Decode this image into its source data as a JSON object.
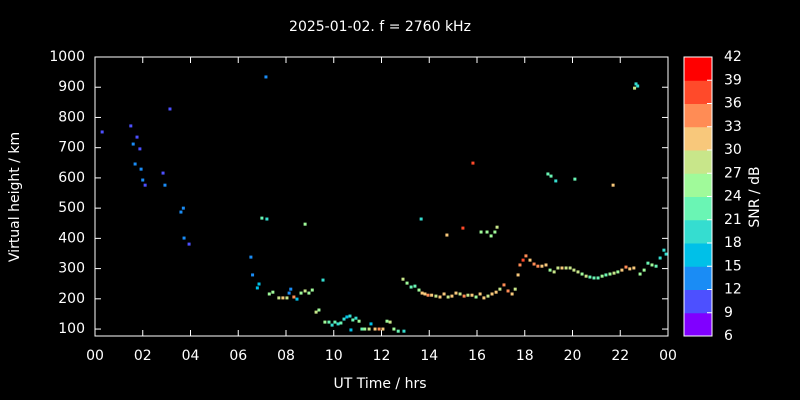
{
  "chart_data": {
    "type": "scatter",
    "title": "2025-01-02. f = 2760 kHz",
    "xlabel": "UT Time / hrs",
    "ylabel": "Virtual height / km",
    "colorbar_label": "SNR / dB",
    "xlim": [
      0,
      24
    ],
    "xticks": [
      {
        "value": 0,
        "label": "00"
      },
      {
        "value": 2,
        "label": "02"
      },
      {
        "value": 4,
        "label": "04"
      },
      {
        "value": 6,
        "label": "06"
      },
      {
        "value": 8,
        "label": "08"
      },
      10,
      12,
      14,
      16,
      18,
      20,
      22,
      {
        "value": 24,
        "label": "00"
      }
    ],
    "ylim": [
      77,
      1000
    ],
    "yticks": [
      100,
      200,
      300,
      400,
      500,
      600,
      700,
      800,
      900,
      1000
    ],
    "clim": [
      6,
      42
    ],
    "cticks": [
      6,
      9,
      12,
      15,
      18,
      21,
      24,
      27,
      30,
      33,
      36,
      39,
      42
    ],
    "colormap": [
      "#8000ff",
      "#4d50ff",
      "#1a8cf5",
      "#00c0e8",
      "#35ddd0",
      "#6af5b4",
      "#a0fa9a",
      "#c8e68a",
      "#f8c87b",
      "#ff8c55",
      "#ff4a2a",
      "#ff0000"
    ],
    "x": [
      0.3,
      1.5,
      1.6,
      1.76,
      1.68,
      1.88,
      1.93,
      2.0,
      2.1,
      2.85,
      2.93,
      3.14,
      3.6,
      3.7,
      3.73,
      3.94,
      7.16,
      6.53,
      6.6,
      6.8,
      6.87,
      6.99,
      7.2,
      7.3,
      7.45,
      7.7,
      7.87,
      8.04,
      8.13,
      8.2,
      8.33,
      8.46,
      8.63,
      8.8,
      8.96,
      9.1,
      8.8,
      9.26,
      9.38,
      9.55,
      9.63,
      9.8,
      9.93,
      10.05,
      10.18,
      10.3,
      10.43,
      10.55,
      10.68,
      10.72,
      10.8,
      10.93,
      11.06,
      11.18,
      11.3,
      11.48,
      11.56,
      11.73,
      11.9,
      12.06,
      12.23,
      12.36,
      12.52,
      12.7,
      12.94,
      12.9,
      13.07,
      13.24,
      13.4,
      13.57,
      13.7,
      13.82,
      13.95,
      14.1,
      14.28,
      14.45,
      14.62,
      14.79,
      14.95,
      15.12,
      15.29,
      15.46,
      15.62,
      15.79,
      15.96,
      16.13,
      16.29,
      16.46,
      16.63,
      16.8,
      16.96,
      17.13,
      17.3,
      17.47,
      17.6,
      17.72,
      13.66,
      14.74,
      15.41,
      15.83,
      16.17,
      16.42,
      16.59,
      16.75,
      16.84,
      17.8,
      17.93,
      18.05,
      18.22,
      18.39,
      18.55,
      18.72,
      18.89,
      19.06,
      19.23,
      19.39,
      19.56,
      19.73,
      19.9,
      20.06,
      20.23,
      20.4,
      20.57,
      20.73,
      20.9,
      21.07,
      21.24,
      21.4,
      21.57,
      21.74,
      21.9,
      22.07,
      22.24,
      22.4,
      22.57,
      22.83,
      23.0,
      23.16,
      23.33,
      23.5,
      23.67,
      23.83,
      23.92,
      18.97,
      19.1,
      19.3,
      20.1,
      21.7,
      22.6,
      22.66,
      22.73
    ],
    "values": [
      752,
      772,
      712,
      735,
      646,
      696,
      629,
      593,
      576,
      616,
      576,
      828,
      487,
      500,
      401,
      381,
      934,
      338,
      279,
      236,
      249,
      467,
      464,
      216,
      222,
      203,
      203,
      203,
      219,
      232,
      206,
      199,
      219,
      226,
      219,
      229,
      447,
      156,
      163,
      262,
      123,
      123,
      113,
      123,
      117,
      120,
      133,
      140,
      143,
      97,
      130,
      136,
      126,
      100,
      100,
      100,
      117,
      100,
      100,
      100,
      126,
      123,
      100,
      93,
      93,
      265,
      252,
      239,
      242,
      229,
      219,
      216,
      212,
      212,
      209,
      206,
      216,
      206,
      209,
      219,
      216,
      209,
      212,
      212,
      206,
      216,
      203,
      209,
      216,
      222,
      232,
      246,
      226,
      216,
      232,
      279,
      464,
      411,
      434,
      649,
      421,
      421,
      408,
      421,
      437,
      312,
      328,
      342,
      328,
      315,
      308,
      308,
      312,
      295,
      289,
      302,
      302,
      302,
      302,
      295,
      289,
      282,
      275,
      272,
      269,
      269,
      275,
      279,
      282,
      285,
      289,
      295,
      305,
      299,
      302,
      282,
      295,
      318,
      312,
      308,
      335,
      361,
      348,
      613,
      606,
      590,
      596,
      576,
      897,
      911,
      904
    ],
    "snr": [
      10,
      10,
      12,
      11,
      12,
      11,
      12,
      12,
      11,
      11,
      12,
      11,
      12,
      13,
      12,
      11,
      14,
      13,
      12,
      15,
      16,
      23,
      20,
      24,
      24,
      27,
      30,
      27,
      12,
      13,
      33,
      15,
      24,
      27,
      24,
      24,
      24,
      27,
      24,
      20,
      24,
      21,
      18,
      21,
      18,
      21,
      18,
      15,
      18,
      15,
      21,
      18,
      24,
      21,
      24,
      27,
      15,
      30,
      33,
      30,
      24,
      27,
      24,
      21,
      20,
      27,
      24,
      21,
      21,
      24,
      30,
      30,
      33,
      30,
      27,
      30,
      30,
      27,
      30,
      30,
      27,
      33,
      27,
      30,
      24,
      30,
      30,
      27,
      30,
      30,
      27,
      33,
      33,
      30,
      27,
      30,
      20,
      30,
      36,
      36,
      24,
      24,
      24,
      24,
      27,
      33,
      36,
      33,
      30,
      33,
      33,
      30,
      30,
      24,
      27,
      27,
      30,
      27,
      27,
      27,
      27,
      24,
      27,
      21,
      21,
      21,
      24,
      21,
      24,
      27,
      24,
      30,
      33,
      30,
      30,
      24,
      24,
      21,
      24,
      21,
      20,
      18,
      20,
      21,
      21,
      20,
      21,
      30,
      27,
      18,
      20
    ]
  }
}
